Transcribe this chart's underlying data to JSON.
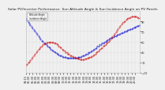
{
  "title": "Solar PV/Inverter Performance  Sun Altitude Angle & Sun Incidence Angle on PV Panels",
  "background_color": "#f0f0f0",
  "plot_bg_color": "#f0f0f0",
  "grid_color": "#bbbbbb",
  "blue_label": "Altitude Angle",
  "red_label": "Incidence Angle",
  "blue_color": "#0000cc",
  "red_color": "#cc0000",
  "ylim": [
    -10,
    110
  ],
  "yticks": [
    -10,
    10,
    30,
    50,
    70,
    90
  ],
  "title_color": "#222222",
  "title_fontsize": 3.2,
  "tick_fontsize": 2.5,
  "blue_x": [
    0,
    1,
    2,
    3,
    4,
    5,
    6,
    7,
    8,
    9,
    10,
    11,
    12,
    13,
    14,
    15,
    16,
    17,
    18,
    19,
    20,
    21,
    22,
    23,
    24,
    25,
    26,
    27,
    28,
    29,
    30,
    31,
    32,
    33,
    34,
    35,
    36,
    37,
    38,
    39,
    40,
    41,
    42,
    43,
    44,
    45,
    46,
    47,
    48,
    49,
    50,
    51,
    52,
    53,
    54,
    55,
    56,
    57,
    58,
    59,
    60,
    61,
    62,
    63,
    64,
    65,
    66,
    67,
    68,
    69,
    70,
    71,
    72,
    73,
    74,
    75,
    76,
    77,
    78,
    79,
    80,
    81,
    82,
    83,
    84,
    85,
    86,
    87,
    88,
    89,
    90,
    91,
    92,
    93,
    94,
    95,
    96,
    97,
    98,
    99,
    100
  ],
  "blue_y": [
    95,
    92,
    89,
    86,
    83,
    80,
    77,
    74,
    71,
    68,
    65,
    62,
    59,
    56,
    53,
    51,
    48,
    46,
    44,
    42,
    40,
    38,
    36,
    34,
    32,
    31,
    29,
    28,
    26,
    25,
    24,
    23,
    22,
    21,
    20,
    20,
    19,
    19,
    18,
    18,
    18,
    18,
    18,
    18,
    19,
    19,
    20,
    20,
    21,
    22,
    23,
    24,
    25,
    26,
    27,
    29,
    30,
    31,
    33,
    34,
    36,
    37,
    39,
    41,
    42,
    44,
    45,
    47,
    48,
    50,
    51,
    53,
    54,
    55,
    57,
    58,
    59,
    60,
    61,
    62,
    63,
    64,
    65,
    66,
    67,
    68,
    69,
    70,
    71,
    72,
    73,
    74,
    75,
    76,
    77,
    78,
    79,
    80,
    81,
    82,
    83
  ],
  "red_x": [
    0,
    1,
    2,
    3,
    4,
    5,
    6,
    7,
    8,
    9,
    10,
    11,
    12,
    13,
    14,
    15,
    16,
    17,
    18,
    19,
    20,
    21,
    22,
    23,
    24,
    25,
    26,
    27,
    28,
    29,
    30,
    31,
    32,
    33,
    34,
    35,
    36,
    37,
    38,
    39,
    40,
    41,
    42,
    43,
    44,
    45,
    46,
    47,
    48,
    49,
    50,
    51,
    52,
    53,
    54,
    55,
    56,
    57,
    58,
    59,
    60,
    61,
    62,
    63,
    64,
    65,
    66,
    67,
    68,
    69,
    70,
    71,
    72,
    73,
    74,
    75,
    76,
    77,
    78,
    79,
    80,
    81,
    82,
    83,
    84,
    85,
    86,
    87,
    88,
    89,
    90,
    91,
    92,
    93,
    94,
    95,
    96,
    97,
    98,
    99,
    100
  ],
  "red_y": [
    5,
    7,
    9,
    11,
    14,
    17,
    20,
    23,
    26,
    29,
    32,
    35,
    37,
    40,
    42,
    44,
    46,
    47,
    48,
    49,
    50,
    50,
    50,
    50,
    49,
    48,
    47,
    46,
    44,
    42,
    40,
    38,
    36,
    34,
    32,
    30,
    29,
    27,
    26,
    24,
    23,
    22,
    21,
    20,
    19,
    18,
    17,
    17,
    16,
    16,
    16,
    16,
    17,
    17,
    18,
    19,
    20,
    21,
    22,
    24,
    25,
    27,
    29,
    31,
    33,
    35,
    37,
    39,
    41,
    43,
    45,
    47,
    49,
    51,
    54,
    57,
    60,
    63,
    66,
    69,
    72,
    75,
    78,
    81,
    84,
    87,
    89,
    91,
    93,
    95,
    96,
    97,
    98,
    99,
    100,
    100,
    100,
    99,
    98,
    97,
    96
  ],
  "xtick_labels": [
    "04:15",
    "05:00",
    "05:30",
    "06:00",
    "06:30",
    "07:00",
    "07:30",
    "08:00",
    "08:30",
    "09:00",
    "09:30",
    "10:00",
    "10:30",
    "11:00",
    "11:30",
    "12:00",
    "12:30",
    "13:00",
    "13:30",
    "14:00",
    "14:30",
    "15:00",
    "15:30",
    "16:00",
    "16:30",
    "17:00",
    "17:30",
    "18:00",
    "18:30",
    "19:00",
    "19:30",
    "20:00",
    "20:30"
  ],
  "xtick_positions": [
    0,
    3,
    6,
    9,
    12,
    15,
    18,
    21,
    24,
    27,
    30,
    33,
    36,
    39,
    42,
    45,
    48,
    51,
    54,
    57,
    60,
    63,
    66,
    69,
    72,
    75,
    78,
    81,
    84,
    87,
    90,
    93,
    96
  ],
  "xlim": [
    0,
    100
  ]
}
